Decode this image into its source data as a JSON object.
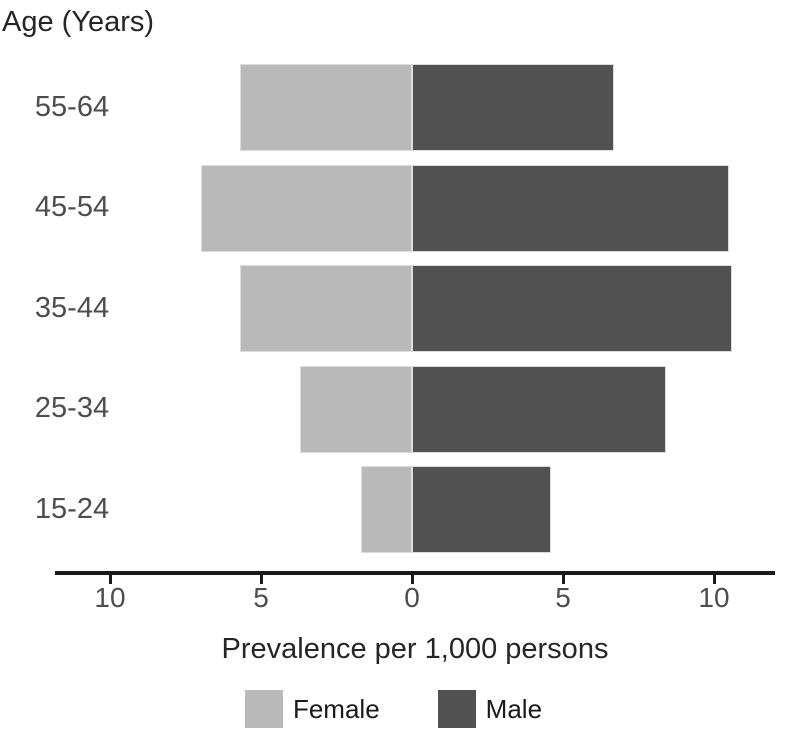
{
  "page": {
    "background": "#ffffff",
    "title": "Age (Years)"
  },
  "chart_data": {
    "type": "bar",
    "orientation": "horizontal-diverging",
    "title": "Age (Years)",
    "xlabel": "Prevalence per 1,000 persons",
    "ylabel": "Age (Years)",
    "categories": [
      "55-64",
      "45-54",
      "35-44",
      "25-34",
      "15-24"
    ],
    "series": [
      {
        "name": "Female",
        "side": "left",
        "color": "#b9b9b9",
        "values": [
          5.7,
          7.0,
          5.7,
          3.7,
          1.7
        ]
      },
      {
        "name": "Male",
        "side": "right",
        "color": "#515151",
        "values": [
          6.7,
          10.5,
          10.6,
          8.4,
          4.6
        ]
      }
    ],
    "x_ticks": [
      {
        "value": -10,
        "label": "10"
      },
      {
        "value": -5,
        "label": "5"
      },
      {
        "value": 0,
        "label": "0"
      },
      {
        "value": 5,
        "label": "5"
      },
      {
        "value": 10,
        "label": "10"
      }
    ],
    "xlim": [
      -11.8,
      12.0
    ],
    "grid": false,
    "legend_position": "bottom",
    "legend": [
      {
        "label": "Female",
        "color": "#b9b9b9"
      },
      {
        "label": "Male",
        "color": "#515151"
      }
    ],
    "colors": {
      "axis_line": "#1a1a1a",
      "tick_text": "#4d4d4d",
      "axis_title_text": "#262626",
      "category_text": "#4d4d4d"
    }
  }
}
